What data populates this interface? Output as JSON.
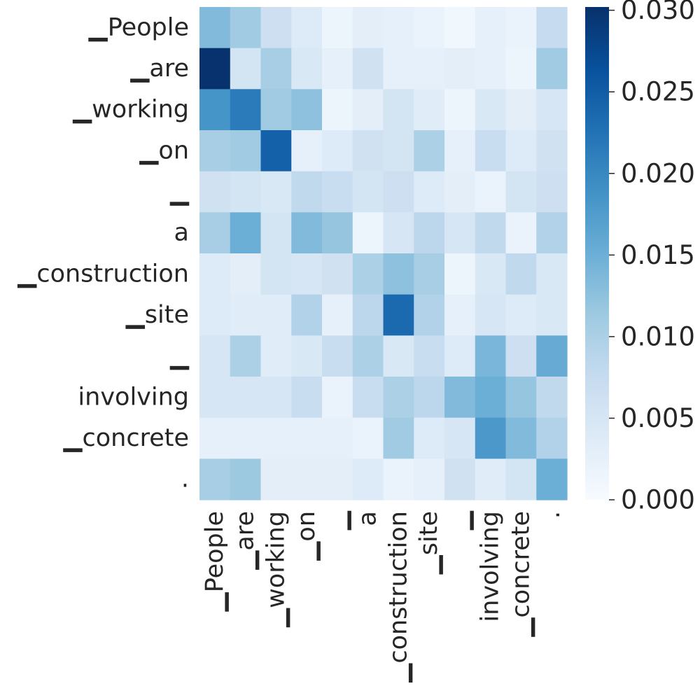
{
  "chart_data": {
    "type": "heatmap",
    "title": "",
    "xlabel": "",
    "ylabel": "",
    "row_labels": [
      "▁People",
      "▁are",
      "▁working",
      "▁on",
      "▁",
      "a",
      "▁construction",
      "▁site",
      "▁",
      "involving",
      "▁concrete",
      "."
    ],
    "col_labels": [
      "▁People",
      "▁are",
      "▁working",
      "▁on",
      "▁",
      "a",
      "▁construction",
      "▁site",
      "▁",
      "involving",
      "▁concrete",
      "."
    ],
    "values": [
      [
        0.0135,
        0.011,
        0.0065,
        0.004,
        0.0015,
        0.003,
        0.0025,
        0.002,
        0.001,
        0.0025,
        0.002,
        0.0075
      ],
      [
        0.03,
        0.0055,
        0.0105,
        0.0045,
        0.0025,
        0.006,
        0.0025,
        0.0025,
        0.003,
        0.0025,
        0.0015,
        0.011
      ],
      [
        0.0185,
        0.0215,
        0.011,
        0.0125,
        0.0015,
        0.003,
        0.0055,
        0.0035,
        0.0015,
        0.0045,
        0.003,
        0.005
      ],
      [
        0.0105,
        0.011,
        0.0245,
        0.0025,
        0.004,
        0.006,
        0.0055,
        0.01,
        0.0025,
        0.007,
        0.004,
        0.006
      ],
      [
        0.006,
        0.0055,
        0.0045,
        0.008,
        0.007,
        0.0055,
        0.0065,
        0.004,
        0.003,
        0.002,
        0.0055,
        0.0065
      ],
      [
        0.0105,
        0.015,
        0.0055,
        0.0135,
        0.012,
        0.0015,
        0.005,
        0.0085,
        0.005,
        0.008,
        0.002,
        0.0095
      ],
      [
        0.004,
        0.003,
        0.0055,
        0.005,
        0.006,
        0.01,
        0.0125,
        0.0105,
        0.0015,
        0.0045,
        0.008,
        0.0045
      ],
      [
        0.004,
        0.0035,
        0.0035,
        0.0095,
        0.0025,
        0.0085,
        0.0235,
        0.0095,
        0.0025,
        0.005,
        0.004,
        0.0045
      ],
      [
        0.005,
        0.01,
        0.0035,
        0.0045,
        0.007,
        0.01,
        0.0045,
        0.007,
        0.004,
        0.014,
        0.0065,
        0.0155
      ],
      [
        0.005,
        0.005,
        0.005,
        0.007,
        0.002,
        0.007,
        0.01,
        0.0085,
        0.0135,
        0.015,
        0.012,
        0.008
      ],
      [
        0.0025,
        0.0025,
        0.0025,
        0.0025,
        0.0025,
        0.002,
        0.011,
        0.004,
        0.005,
        0.018,
        0.0135,
        0.0095
      ],
      [
        0.0105,
        0.0115,
        0.003,
        0.003,
        0.003,
        0.004,
        0.002,
        0.0025,
        0.006,
        0.0035,
        0.0055,
        0.015
      ]
    ],
    "vmin": 0,
    "vmax": 0.0302,
    "colormap": "Blues",
    "colorbar": {
      "ticks": [
        0.0,
        0.005,
        0.01,
        0.015,
        0.02,
        0.025,
        0.03
      ],
      "tick_labels": [
        "0.000",
        "0.005",
        "0.010",
        "0.015",
        "0.020",
        "0.025",
        "0.030"
      ],
      "placement": "right"
    }
  }
}
